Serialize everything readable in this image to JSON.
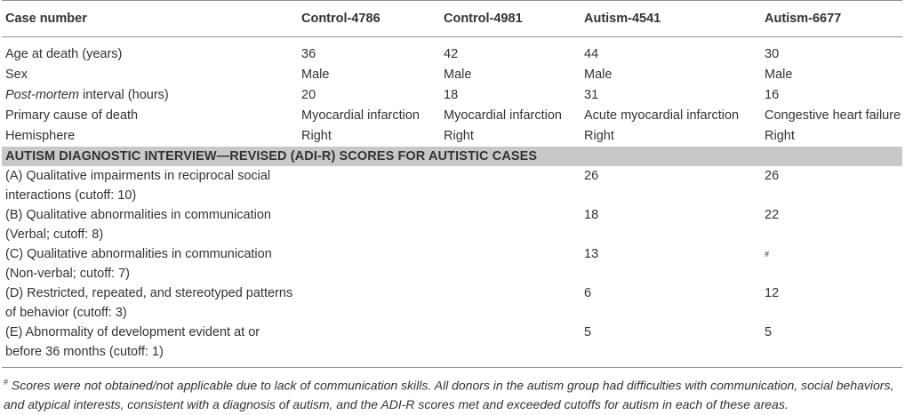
{
  "table": {
    "headers": [
      "Case number",
      "Control-4786",
      "Control-4981",
      "Autism-4541",
      "Autism-6677"
    ],
    "rows": [
      {
        "label_prefix": "",
        "label_italic": "",
        "label": "Age at death (years)",
        "values": [
          "36",
          "42",
          "44",
          "30"
        ]
      },
      {
        "label_prefix": "",
        "label_italic": "",
        "label": "Sex",
        "values": [
          "Male",
          "Male",
          "Male",
          "Male"
        ]
      },
      {
        "label_prefix": "",
        "label_italic": "Post-mortem",
        "label": " interval (hours)",
        "values": [
          "20",
          "18",
          "31",
          "16"
        ]
      },
      {
        "label_prefix": "",
        "label_italic": "",
        "label": "Primary cause of death",
        "values": [
          "Myocardial infarction",
          "Myocardial infarction",
          "Acute myocardial infarction",
          "Congestive heart failure"
        ]
      },
      {
        "label_prefix": "",
        "label_italic": "",
        "label": "Hemisphere",
        "values": [
          "Right",
          "Right",
          "Right",
          "Right"
        ]
      }
    ],
    "section_title": "AUTISM DIAGNOSTIC INTERVIEW—REVISED (ADI-R) SCORES FOR AUTISTIC CASES",
    "score_rows": [
      {
        "label": "(A) Qualitative impairments in reciprocal social interactions (cutoff: 10)",
        "values": [
          "",
          "",
          "26",
          "26"
        ]
      },
      {
        "label": "(B) Qualitative abnormalities in communication (Verbal; cutoff: 8)",
        "values": [
          "",
          "",
          "18",
          "22"
        ]
      },
      {
        "label": "(C) Qualitative abnormalities in communication (Non-verbal; cutoff: 7)",
        "values": [
          "",
          "",
          "13",
          "#"
        ]
      },
      {
        "label": "(D) Restricted, repeated, and stereotyped patterns of behavior (cutoff: 3)",
        "values": [
          "",
          "",
          "6",
          "12"
        ]
      },
      {
        "label": "(E) Abnormality of development evident at or before 36 months (cutoff: 1)",
        "values": [
          "",
          "",
          "5",
          "5"
        ]
      }
    ]
  },
  "footnote": {
    "mark": "#",
    "text": "Scores were not obtained/not applicable due to lack of communication skills. All donors in the autism group had difficulties with communication, social behaviors, and atypical interests, consistent with a diagnosis of autism, and the ADI-R scores met and exceeded cutoffs for autism in each of these areas."
  }
}
